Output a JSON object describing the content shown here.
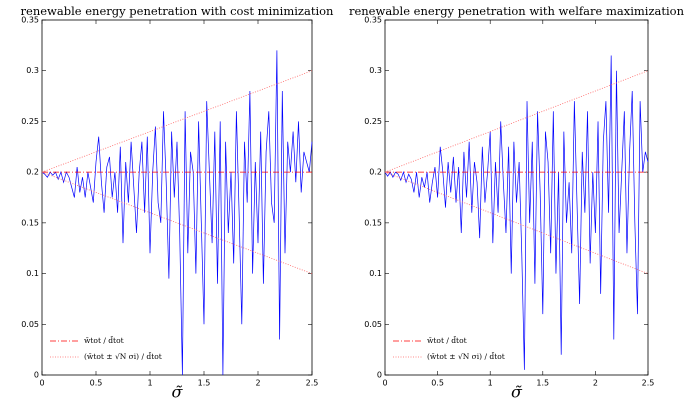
{
  "chart_data": [
    {
      "type": "line",
      "title": "renewable energy penetration with cost minimization",
      "x_label": "σ̃",
      "xlim": [
        0,
        2.5
      ],
      "ylim": [
        0,
        0.35
      ],
      "xticks": [
        0,
        0.5,
        1,
        1.5,
        2,
        2.5
      ],
      "yticks": [
        0,
        0.05,
        0.1,
        0.15,
        0.2,
        0.25,
        0.3,
        0.35
      ],
      "legend": "lower left",
      "series": [
        {
          "color": "#0000ff",
          "style": "solid",
          "x": [
            0,
            0.025,
            0.05,
            0.075,
            0.1,
            0.125,
            0.15,
            0.175,
            0.2,
            0.225,
            0.25,
            0.275,
            0.3,
            0.325,
            0.35,
            0.375,
            0.4,
            0.425,
            0.45,
            0.475,
            0.5,
            0.525,
            0.55,
            0.575,
            0.6,
            0.625,
            0.65,
            0.675,
            0.7,
            0.725,
            0.75,
            0.775,
            0.8,
            0.825,
            0.85,
            0.875,
            0.9,
            0.925,
            0.95,
            0.975,
            1,
            1.025,
            1.05,
            1.075,
            1.1,
            1.125,
            1.15,
            1.175,
            1.2,
            1.225,
            1.25,
            1.275,
            1.3,
            1.325,
            1.35,
            1.375,
            1.4,
            1.425,
            1.45,
            1.475,
            1.5,
            1.525,
            1.55,
            1.575,
            1.6,
            1.625,
            1.65,
            1.675,
            1.7,
            1.725,
            1.75,
            1.775,
            1.8,
            1.825,
            1.85,
            1.875,
            1.9,
            1.925,
            1.95,
            1.975,
            2,
            2.025,
            2.05,
            2.075,
            2.1,
            2.125,
            2.15,
            2.175,
            2.2,
            2.225,
            2.25,
            2.275,
            2.3,
            2.325,
            2.35,
            2.375,
            2.4,
            2.425,
            2.45,
            2.475,
            2.5
          ],
          "values": [
            0.2,
            0.198,
            0.195,
            0.2,
            0.197,
            0.2,
            0.193,
            0.2,
            0.19,
            0.2,
            0.195,
            0.185,
            0.175,
            0.205,
            0.18,
            0.195,
            0.175,
            0.2,
            0.185,
            0.17,
            0.21,
            0.235,
            0.19,
            0.16,
            0.205,
            0.215,
            0.175,
            0.2,
            0.16,
            0.225,
            0.13,
            0.21,
            0.17,
            0.23,
            0.185,
            0.14,
            0.2,
            0.23,
            0.16,
            0.235,
            0.12,
            0.2,
            0.245,
            0.17,
            0.15,
            0.26,
            0.19,
            0.095,
            0.24,
            0.175,
            0.23,
            0.14,
            0.0,
            0.26,
            0.12,
            0.22,
            0.2,
            0.1,
            0.25,
            0.15,
            0.05,
            0.27,
            0.2,
            0.13,
            0.24,
            0.09,
            0.25,
            0.0,
            0.23,
            0.14,
            0.2,
            0.11,
            0.26,
            0.16,
            0.05,
            0.23,
            0.17,
            0.28,
            0.1,
            0.21,
            0.13,
            0.24,
            0.09,
            0.22,
            0.26,
            0.17,
            0.15,
            0.32,
            0.035,
            0.28,
            0.12,
            0.23,
            0.2,
            0.24,
            0.19,
            0.25,
            0.18,
            0.22,
            0.21,
            0.2,
            0.23
          ]
        },
        {
          "name": "w̄tot / d̄tot",
          "color": "#ff0000",
          "style": "dashdot",
          "x": [
            0,
            2.5
          ],
          "values": [
            0.2,
            0.2
          ]
        },
        {
          "name": "(w̄tot ± √N σi) / d̄tot",
          "color": "#ff6666",
          "style": "dotted",
          "x": [
            0,
            2.5
          ],
          "values": [
            0.2,
            0.3
          ]
        },
        {
          "color": "#ff6666",
          "style": "dotted",
          "x": [
            0,
            2.5
          ],
          "values": [
            0.2,
            0.1
          ]
        }
      ]
    },
    {
      "type": "line",
      "title": "renewable energy penetration with welfare maximization",
      "x_label": "σ̃",
      "xlim": [
        0,
        2.5
      ],
      "ylim": [
        0,
        0.35
      ],
      "xticks": [
        0,
        0.5,
        1,
        1.5,
        2,
        2.5
      ],
      "yticks": [
        0,
        0.05,
        0.1,
        0.15,
        0.2,
        0.25,
        0.3,
        0.35
      ],
      "legend": "lower left",
      "series": [
        {
          "color": "#0000ff",
          "style": "solid",
          "x": [
            0,
            0.025,
            0.05,
            0.075,
            0.1,
            0.125,
            0.15,
            0.175,
            0.2,
            0.225,
            0.25,
            0.275,
            0.3,
            0.325,
            0.35,
            0.375,
            0.4,
            0.425,
            0.45,
            0.475,
            0.5,
            0.525,
            0.55,
            0.575,
            0.6,
            0.625,
            0.65,
            0.675,
            0.7,
            0.725,
            0.75,
            0.775,
            0.8,
            0.825,
            0.85,
            0.875,
            0.9,
            0.925,
            0.95,
            0.975,
            1,
            1.025,
            1.05,
            1.075,
            1.1,
            1.125,
            1.15,
            1.175,
            1.2,
            1.225,
            1.25,
            1.275,
            1.3,
            1.325,
            1.35,
            1.375,
            1.4,
            1.425,
            1.45,
            1.475,
            1.5,
            1.525,
            1.55,
            1.575,
            1.6,
            1.625,
            1.65,
            1.675,
            1.7,
            1.725,
            1.75,
            1.775,
            1.8,
            1.825,
            1.85,
            1.875,
            1.9,
            1.925,
            1.95,
            1.975,
            2,
            2.025,
            2.05,
            2.075,
            2.1,
            2.125,
            2.15,
            2.175,
            2.2,
            2.225,
            2.25,
            2.275,
            2.3,
            2.325,
            2.35,
            2.375,
            2.4,
            2.425,
            2.45,
            2.475,
            2.5
          ],
          "values": [
            0.2,
            0.196,
            0.2,
            0.195,
            0.2,
            0.198,
            0.192,
            0.2,
            0.19,
            0.198,
            0.193,
            0.18,
            0.2,
            0.175,
            0.195,
            0.185,
            0.2,
            0.17,
            0.19,
            0.205,
            0.175,
            0.225,
            0.2,
            0.165,
            0.21,
            0.18,
            0.215,
            0.17,
            0.205,
            0.14,
            0.22,
            0.175,
            0.23,
            0.16,
            0.21,
            0.19,
            0.135,
            0.225,
            0.17,
            0.2,
            0.24,
            0.13,
            0.21,
            0.16,
            0.25,
            0.19,
            0.14,
            0.225,
            0.1,
            0.23,
            0.17,
            0.21,
            0.12,
            0.005,
            0.27,
            0.15,
            0.23,
            0.09,
            0.26,
            0.18,
            0.06,
            0.24,
            0.21,
            0.12,
            0.26,
            0.1,
            0.2,
            0.02,
            0.24,
            0.15,
            0.19,
            0.12,
            0.27,
            0.17,
            0.07,
            0.22,
            0.16,
            0.26,
            0.11,
            0.2,
            0.14,
            0.25,
            0.08,
            0.23,
            0.27,
            0.16,
            0.315,
            0.035,
            0.3,
            0.14,
            0.2,
            0.26,
            0.12,
            0.22,
            0.28,
            0.15,
            0.06,
            0.27,
            0.2,
            0.22,
            0.21
          ]
        },
        {
          "name": "w̄tot / d̄tot",
          "color": "#ff0000",
          "style": "dashdot",
          "x": [
            0,
            2.5
          ],
          "values": [
            0.2,
            0.2
          ]
        },
        {
          "name": "(w̄tot ± √N σi) / d̄tot",
          "color": "#ff6666",
          "style": "dotted",
          "x": [
            0,
            2.5
          ],
          "values": [
            0.2,
            0.3
          ]
        },
        {
          "color": "#ff6666",
          "style": "dotted",
          "x": [
            0,
            2.5
          ],
          "values": [
            0.2,
            0.1
          ]
        }
      ]
    }
  ]
}
